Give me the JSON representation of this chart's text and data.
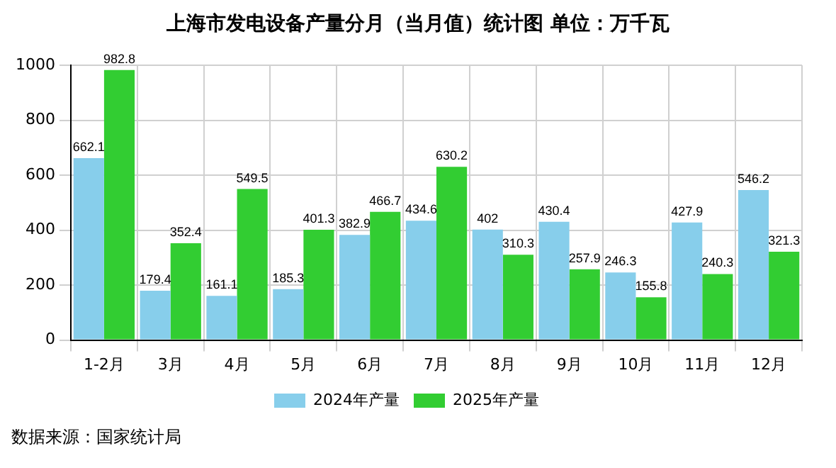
{
  "chart_data": {
    "type": "bar",
    "title": "上海市发电设备产量分月（当月值）统计图 单位：万千瓦",
    "categories": [
      "1-2月",
      "3月",
      "4月",
      "5月",
      "6月",
      "7月",
      "8月",
      "9月",
      "10月",
      "11月",
      "12月"
    ],
    "series": [
      {
        "name": "2024年产量",
        "color": "#87ceeb",
        "values": [
          662.1,
          179.4,
          161.1,
          185.3,
          382.9,
          434.6,
          402,
          430.4,
          246.3,
          427.9,
          546.2
        ]
      },
      {
        "name": "2025年产量",
        "color": "#32cd32",
        "values": [
          982.8,
          352.4,
          549.5,
          401.3,
          466.7,
          630.2,
          310.3,
          257.9,
          155.8,
          240.3,
          321.3
        ]
      }
    ],
    "ylim": [
      0,
      1000
    ],
    "yticks": [
      0,
      200,
      400,
      600,
      800,
      1000
    ],
    "grid": true,
    "legend": "bottom",
    "data_labels": true,
    "annotations": [
      "数据来源：国家统计局"
    ]
  }
}
